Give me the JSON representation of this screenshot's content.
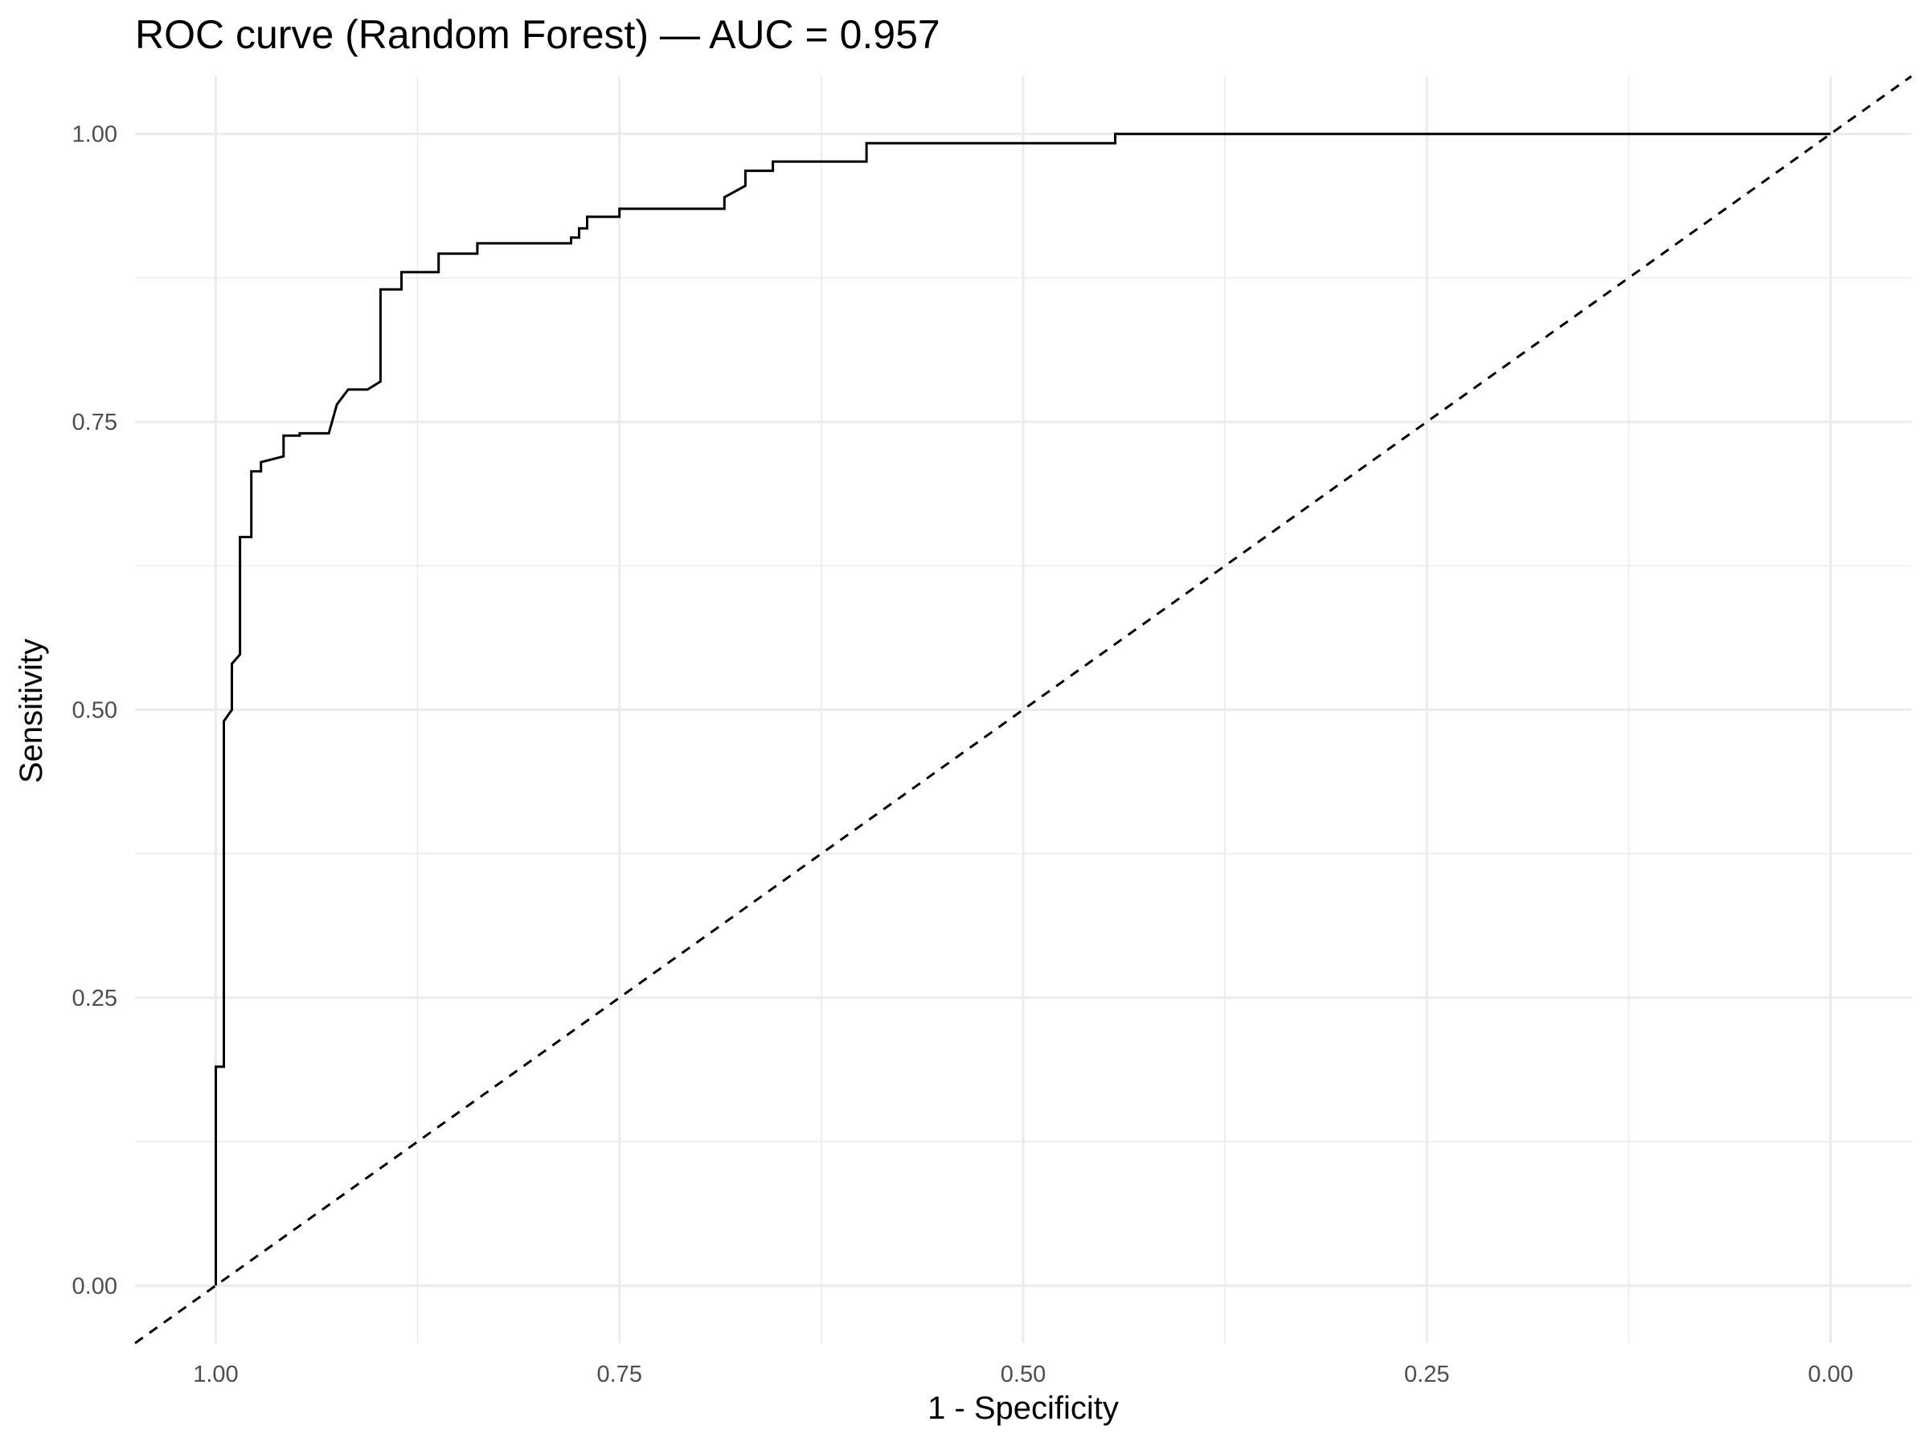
{
  "chart_data": {
    "type": "line",
    "title": "ROC curve (Random Forest) — AUC = 0.957",
    "xlabel": "1 - Specificity",
    "ylabel": "Sensitivity",
    "x_reversed": true,
    "xlim": [
      1.05,
      -0.05
    ],
    "ylim": [
      -0.05,
      1.05
    ],
    "x_ticks": [
      1.0,
      0.75,
      0.5,
      0.25,
      0.0
    ],
    "x_tick_labels": [
      "1.00",
      "0.75",
      "0.50",
      "0.25",
      "0.00"
    ],
    "y_ticks": [
      0.0,
      0.25,
      0.5,
      0.75,
      1.0
    ],
    "y_tick_labels": [
      "0.00",
      "0.25",
      "0.50",
      "0.75",
      "1.00"
    ],
    "grid": true,
    "curve_color": "#000000",
    "grid_color": "#ebebeb",
    "series": [
      {
        "style": "solid",
        "x": [
          1.0,
          1.0,
          0.995,
          0.995,
          0.99,
          0.99,
          0.985,
          0.985,
          0.978,
          0.978,
          0.972,
          0.972,
          0.958,
          0.958,
          0.948,
          0.948,
          0.93,
          0.925,
          0.918,
          0.906,
          0.898,
          0.898,
          0.885,
          0.885,
          0.862,
          0.862,
          0.838,
          0.838,
          0.78,
          0.78,
          0.775,
          0.775,
          0.77,
          0.77,
          0.75,
          0.75,
          0.73,
          0.73,
          0.685,
          0.685,
          0.672,
          0.672,
          0.655,
          0.655,
          0.625,
          0.625,
          0.612,
          0.603,
          0.597,
          0.597,
          0.556,
          0.556,
          0.472,
          0.472,
          0.458,
          0.458,
          0.443,
          0.443,
          0.0
        ],
        "y": [
          0.0,
          0.19,
          0.19,
          0.49,
          0.5,
          0.54,
          0.548,
          0.65,
          0.65,
          0.707,
          0.707,
          0.715,
          0.72,
          0.738,
          0.738,
          0.74,
          0.74,
          0.765,
          0.778,
          0.778,
          0.785,
          0.865,
          0.865,
          0.88,
          0.88,
          0.896,
          0.896,
          0.905,
          0.905,
          0.91,
          0.91,
          0.918,
          0.918,
          0.928,
          0.928,
          0.935,
          0.935,
          0.935,
          0.935,
          0.945,
          0.955,
          0.968,
          0.968,
          0.976,
          0.976,
          0.976,
          0.976,
          0.976,
          0.976,
          0.992,
          0.992,
          0.992,
          0.992,
          0.992,
          0.992,
          0.992,
          0.992,
          1.0,
          1.0
        ]
      },
      {
        "style": "dashed",
        "x": [
          1.05,
          -0.05
        ],
        "y": [
          -0.05,
          1.05
        ]
      }
    ]
  }
}
